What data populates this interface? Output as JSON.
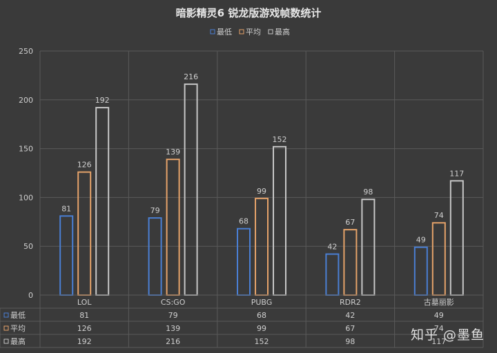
{
  "chart_data": {
    "type": "bar",
    "title": "暗影精灵6 锐龙版游戏帧数统计",
    "categories": [
      "LOL",
      "CS:GO",
      "PUBG",
      "RDR2",
      "古墓丽影"
    ],
    "series": [
      {
        "name": "最低",
        "values": [
          81,
          79,
          68,
          42,
          49
        ],
        "color": "#4a7fd4"
      },
      {
        "name": "平均",
        "values": [
          126,
          139,
          99,
          67,
          74
        ],
        "color": "#e6a36a"
      },
      {
        "name": "最高",
        "values": [
          192,
          216,
          152,
          98,
          117
        ],
        "color": "#c8c8c8"
      }
    ],
    "yticks": [
      "0",
      "50",
      "100",
      "150",
      "200",
      "250"
    ],
    "ylim": [
      0,
      250
    ],
    "legend_position": "top-center",
    "data_table": true,
    "grid": true
  },
  "watermark": "知乎 @墨鱼"
}
